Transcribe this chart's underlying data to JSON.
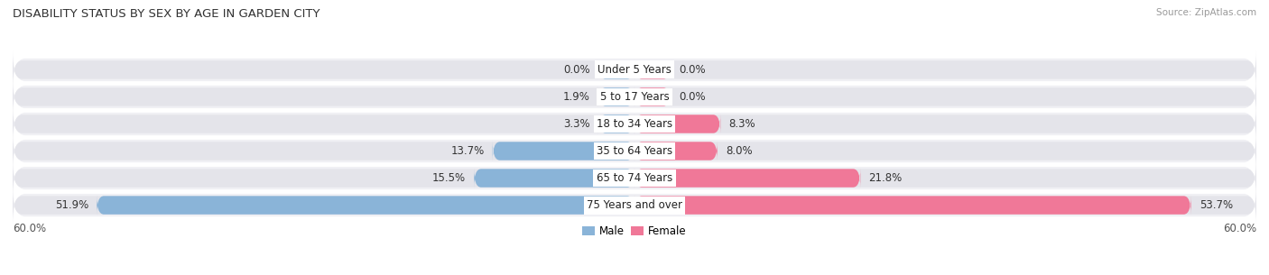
{
  "title": "DISABILITY STATUS BY SEX BY AGE IN GARDEN CITY",
  "source": "Source: ZipAtlas.com",
  "categories": [
    "Under 5 Years",
    "5 to 17 Years",
    "18 to 34 Years",
    "35 to 64 Years",
    "65 to 74 Years",
    "75 Years and over"
  ],
  "male_values": [
    0.0,
    1.9,
    3.3,
    13.7,
    15.5,
    51.9
  ],
  "female_values": [
    0.0,
    0.0,
    8.3,
    8.0,
    21.8,
    53.7
  ],
  "male_color": "#8ab4d8",
  "female_color": "#f07898",
  "bar_bg_color": "#e4e4ea",
  "row_bg_color": "#f0f0f4",
  "max_value": 60.0,
  "min_bar_width": 3.5,
  "bar_height": 0.68,
  "label_fontsize": 8.5,
  "title_fontsize": 9.5,
  "fig_width": 14.06,
  "fig_height": 3.05
}
